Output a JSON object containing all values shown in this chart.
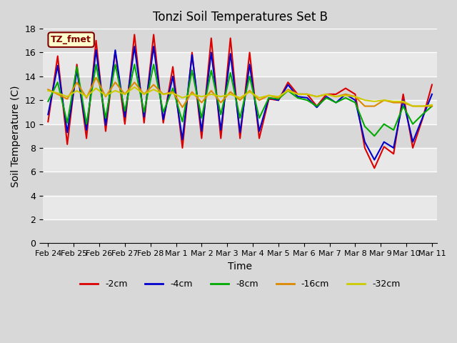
{
  "title": "Tonzi Soil Temperatures Set B",
  "xlabel": "Time",
  "ylabel": "Soil Temperature (C)",
  "ylim": [
    0,
    18
  ],
  "yticks": [
    0,
    2,
    4,
    6,
    8,
    10,
    12,
    14,
    16,
    18
  ],
  "annotation_label": "TZ_fmet",
  "annotation_bg": "#ffffcc",
  "annotation_border": "#800000",
  "legend_entries": [
    "-2cm",
    "-4cm",
    "-8cm",
    "-16cm",
    "-32cm"
  ],
  "line_colors": [
    "#dd0000",
    "#0000cc",
    "#00aa00",
    "#dd8800",
    "#cccc00"
  ],
  "line_widths": [
    1.5,
    1.5,
    1.5,
    1.5,
    1.5
  ],
  "x_tick_labels": [
    "Feb 24",
    "Feb 25",
    "Feb 26",
    "Feb 27",
    "Feb 28",
    "Mar 1",
    "Mar 2",
    "Mar 3",
    "Mar 4",
    "Mar 5",
    "Mar 6",
    "Mar 7",
    "Mar 8",
    "Mar 9",
    "Mar 10",
    "Mar 11"
  ],
  "series": {
    "neg2cm": [
      10.2,
      15.7,
      8.3,
      15.0,
      8.8,
      17.0,
      9.4,
      16.1,
      10.0,
      17.5,
      10.1,
      17.5,
      10.1,
      14.8,
      8.0,
      16.0,
      8.8,
      17.2,
      8.8,
      17.2,
      8.8,
      16.0,
      8.8,
      12.1,
      12.0,
      13.5,
      12.5,
      12.5,
      11.5,
      12.5,
      12.5,
      13.0,
      12.5,
      8.0,
      6.3,
      8.1,
      7.5,
      12.5,
      8.0,
      10.4,
      13.3
    ],
    "neg4cm": [
      10.8,
      14.9,
      9.3,
      14.5,
      9.5,
      16.2,
      9.9,
      16.2,
      10.6,
      16.5,
      10.6,
      16.5,
      10.4,
      14.0,
      8.7,
      15.8,
      9.4,
      16.0,
      9.5,
      15.9,
      9.3,
      15.0,
      9.4,
      12.2,
      12.0,
      13.3,
      12.3,
      12.2,
      11.4,
      12.3,
      11.8,
      12.5,
      12.0,
      8.5,
      7.0,
      8.5,
      8.0,
      12.0,
      8.5,
      10.5,
      12.5
    ],
    "neg8cm": [
      11.9,
      13.5,
      10.1,
      14.8,
      10.0,
      15.0,
      10.5,
      15.0,
      11.1,
      15.0,
      11.0,
      15.0,
      11.0,
      13.0,
      10.2,
      14.5,
      10.5,
      14.5,
      10.8,
      14.3,
      10.5,
      14.0,
      10.5,
      12.2,
      12.1,
      12.8,
      12.2,
      12.0,
      11.5,
      12.2,
      11.8,
      12.2,
      11.8,
      9.8,
      9.0,
      10.0,
      9.5,
      11.5,
      10.0,
      10.8,
      11.5
    ],
    "neg16cm": [
      12.9,
      12.5,
      12.1,
      13.5,
      12.2,
      13.9,
      12.3,
      13.5,
      12.5,
      13.5,
      12.5,
      13.3,
      12.5,
      12.7,
      11.4,
      12.7,
      11.8,
      12.8,
      11.8,
      12.7,
      12.0,
      12.8,
      12.0,
      12.4,
      12.2,
      12.9,
      12.5,
      12.5,
      12.3,
      12.5,
      12.3,
      12.5,
      12.3,
      11.5,
      11.5,
      12.0,
      11.8,
      11.8,
      11.5,
      11.5,
      11.5
    ],
    "neg32cm": [
      12.8,
      12.6,
      12.3,
      12.8,
      12.3,
      13.0,
      12.4,
      12.8,
      12.5,
      13.1,
      12.5,
      12.9,
      12.5,
      12.6,
      12.2,
      12.5,
      12.3,
      12.5,
      12.3,
      12.5,
      12.2,
      12.7,
      12.2,
      12.4,
      12.3,
      12.8,
      12.5,
      12.5,
      12.3,
      12.5,
      12.3,
      12.4,
      12.3,
      12.0,
      11.9,
      12.0,
      11.9,
      11.9,
      11.5,
      11.5,
      11.6
    ]
  }
}
